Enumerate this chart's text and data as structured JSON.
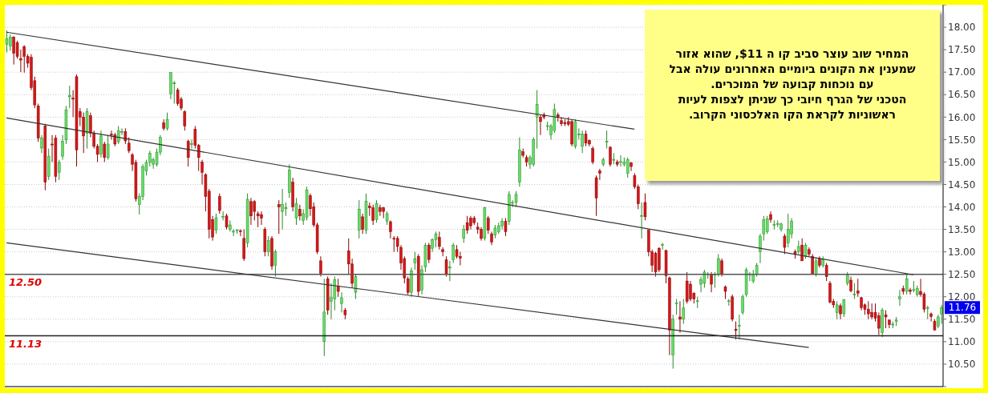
{
  "chart_data": {
    "type": "candlestick",
    "categories": [
      null,
      null,
      null,
      null,
      null,
      null,
      null,
      null,
      null,
      null,
      null,
      null,
      null,
      null,
      null,
      null,
      null,
      null,
      null,
      null,
      null,
      null,
      null,
      null,
      null,
      null,
      null,
      null,
      null,
      null,
      null,
      null,
      null,
      null,
      null,
      null,
      null,
      null,
      null,
      null,
      null,
      null,
      null,
      null,
      null,
      null,
      null,
      null,
      null,
      null,
      null,
      null,
      null,
      null,
      null,
      null,
      null,
      null,
      null,
      null,
      null,
      null,
      null,
      null,
      null,
      null,
      null,
      null,
      null,
      null,
      null,
      null,
      null,
      null,
      null,
      null,
      null,
      null,
      null,
      null,
      null,
      null,
      null,
      null,
      null,
      null,
      null,
      null,
      null,
      null,
      null,
      null,
      null,
      null,
      null,
      null,
      null,
      null,
      null,
      null,
      null,
      null,
      null,
      null,
      null,
      null,
      null,
      null,
      null,
      null,
      null,
      null,
      null,
      null,
      null,
      null,
      null,
      null,
      null,
      null,
      null,
      null,
      null,
      null,
      null,
      null,
      null,
      null,
      null,
      null,
      null,
      null,
      null,
      null,
      null,
      null,
      null,
      null,
      null,
      null,
      null,
      null,
      null,
      null,
      null,
      null,
      null,
      null,
      null,
      null,
      null,
      null,
      null,
      null,
      null,
      null,
      null,
      null,
      null,
      null,
      null,
      null,
      null,
      null,
      null,
      null,
      null,
      null,
      null,
      null,
      null,
      null,
      null,
      null,
      null,
      null,
      null,
      null,
      null,
      null,
      null,
      null,
      null,
      null,
      null,
      null,
      null,
      null,
      null,
      null,
      null,
      null,
      null,
      null,
      null,
      null,
      null,
      null,
      null,
      null,
      null,
      null,
      null,
      null,
      null,
      null,
      null,
      null,
      null,
      null,
      null,
      null,
      null,
      null,
      null,
      null,
      null,
      null,
      null,
      null,
      null,
      null,
      null,
      null,
      null,
      null,
      null,
      null,
      null,
      null,
      null,
      null,
      null,
      null,
      null,
      null,
      null,
      null,
      null,
      null,
      null,
      null,
      null,
      null,
      null,
      null,
      null,
      null,
      null,
      null,
      null,
      null,
      null,
      null,
      null,
      null,
      null,
      null,
      null,
      null,
      null,
      null,
      null,
      null,
      null,
      null,
      null,
      null,
      null
    ],
    "ohlc": [
      [
        17.62,
        17.93,
        17.44,
        17.75
      ],
      [
        17.58,
        17.84,
        17.48,
        17.78
      ],
      [
        17.78,
        17.8,
        17.17,
        17.42
      ],
      [
        17.66,
        17.7,
        17.3,
        17.35
      ],
      [
        17.3,
        17.5,
        17.0,
        17.27
      ],
      [
        17.57,
        17.6,
        16.99,
        17.35
      ],
      [
        17.35,
        17.4,
        17.1,
        17.2
      ],
      [
        17.33,
        17.4,
        16.6,
        16.66
      ],
      [
        16.81,
        16.9,
        16.2,
        16.27
      ],
      [
        16.25,
        16.3,
        15.45,
        15.53
      ],
      [
        15.31,
        15.6,
        15.2,
        15.53
      ],
      [
        15.8,
        15.85,
        14.37,
        14.55
      ],
      [
        14.68,
        15.3,
        14.6,
        15.13
      ],
      [
        15.4,
        15.6,
        15.0,
        15.38
      ],
      [
        15.53,
        15.6,
        14.55,
        14.68
      ],
      [
        14.77,
        15.05,
        14.6,
        14.99
      ],
      [
        15.13,
        15.6,
        15.05,
        15.46
      ],
      [
        15.49,
        16.25,
        15.4,
        16.16
      ],
      [
        16.45,
        16.7,
        16.2,
        16.48
      ],
      [
        16.42,
        16.6,
        16.0,
        16.4
      ],
      [
        16.9,
        16.95,
        14.9,
        15.27
      ],
      [
        16.12,
        16.2,
        15.8,
        16.0
      ],
      [
        16.0,
        16.1,
        15.2,
        15.58
      ],
      [
        15.64,
        16.2,
        15.3,
        16.12
      ],
      [
        16.03,
        16.1,
        15.55,
        15.64
      ],
      [
        15.64,
        15.7,
        15.3,
        15.35
      ],
      [
        15.35,
        15.4,
        15.0,
        15.17
      ],
      [
        15.18,
        15.7,
        15.1,
        15.58
      ],
      [
        15.4,
        15.45,
        15.0,
        15.1
      ],
      [
        15.1,
        15.6,
        15.05,
        15.4
      ],
      [
        15.62,
        15.7,
        15.5,
        15.6
      ],
      [
        15.6,
        15.65,
        15.35,
        15.4
      ],
      [
        15.45,
        15.8,
        15.4,
        15.7
      ],
      [
        15.66,
        15.75,
        15.6,
        15.68
      ],
      [
        15.68,
        15.75,
        15.4,
        15.47
      ],
      [
        15.42,
        15.55,
        15.2,
        15.25
      ],
      [
        15.16,
        15.2,
        14.8,
        14.95
      ],
      [
        14.99,
        15.05,
        14.12,
        14.18
      ],
      [
        14.05,
        14.3,
        13.83,
        14.23
      ],
      [
        14.23,
        14.95,
        14.15,
        14.9
      ],
      [
        14.8,
        15.05,
        14.7,
        14.99
      ],
      [
        14.99,
        15.25,
        14.9,
        15.2
      ],
      [
        14.95,
        15.1,
        14.85,
        15.05
      ],
      [
        14.95,
        15.3,
        14.9,
        15.22
      ],
      [
        15.22,
        15.6,
        15.15,
        15.55
      ],
      [
        15.87,
        15.95,
        15.7,
        15.75
      ],
      [
        15.75,
        16.1,
        15.7,
        15.95
      ],
      [
        16.52,
        17.0,
        16.4,
        16.99
      ],
      [
        16.74,
        16.8,
        16.3,
        16.76
      ],
      [
        16.6,
        16.65,
        16.25,
        16.3
      ],
      [
        16.4,
        16.45,
        16.15,
        16.2
      ],
      [
        16.12,
        16.15,
        15.7,
        15.8
      ],
      [
        15.46,
        15.5,
        14.9,
        15.1
      ],
      [
        15.39,
        15.5,
        15.3,
        15.41
      ],
      [
        15.73,
        15.8,
        15.3,
        15.37
      ],
      [
        15.37,
        15.4,
        14.8,
        15.1
      ],
      [
        15.0,
        15.05,
        14.5,
        14.77
      ],
      [
        14.72,
        14.75,
        13.9,
        14.23
      ],
      [
        14.35,
        14.4,
        13.3,
        13.5
      ],
      [
        13.72,
        13.8,
        13.25,
        13.33
      ],
      [
        13.48,
        13.85,
        13.4,
        13.76
      ],
      [
        14.23,
        14.3,
        13.85,
        13.92
      ],
      [
        13.77,
        13.9,
        13.7,
        13.79
      ],
      [
        13.8,
        13.85,
        13.5,
        13.55
      ],
      [
        13.5,
        13.7,
        13.45,
        13.6
      ],
      [
        13.44,
        13.5,
        13.35,
        13.46
      ],
      [
        13.48,
        13.5,
        13.4,
        13.49
      ],
      [
        13.47,
        13.5,
        13.35,
        13.46
      ],
      [
        13.3,
        13.5,
        12.8,
        12.85
      ],
      [
        13.2,
        14.3,
        13.1,
        14.17
      ],
      [
        14.12,
        14.2,
        13.6,
        13.8
      ],
      [
        14.12,
        14.15,
        13.7,
        13.9
      ],
      [
        13.85,
        13.9,
        13.55,
        13.8
      ],
      [
        13.83,
        13.9,
        13.6,
        13.75
      ],
      [
        13.5,
        13.55,
        12.9,
        13.0
      ],
      [
        13.0,
        13.35,
        12.9,
        13.25
      ],
      [
        13.3,
        13.35,
        12.6,
        12.68
      ],
      [
        12.7,
        13.05,
        12.45,
        13.0
      ],
      [
        14.05,
        14.15,
        13.4,
        14.0
      ],
      [
        13.9,
        14.4,
        13.5,
        14.05
      ],
      [
        13.96,
        14.1,
        13.8,
        13.98
      ],
      [
        14.32,
        14.95,
        14.2,
        14.82
      ],
      [
        14.55,
        14.65,
        13.9,
        14.0
      ],
      [
        13.75,
        14.2,
        13.6,
        14.07
      ],
      [
        13.95,
        14.05,
        13.7,
        13.8
      ],
      [
        13.7,
        13.95,
        13.6,
        13.85
      ],
      [
        13.77,
        14.45,
        13.7,
        14.38
      ],
      [
        14.25,
        14.3,
        13.8,
        13.96
      ],
      [
        14.0,
        14.1,
        13.55,
        13.6
      ],
      [
        13.6,
        13.65,
        12.95,
        13.0
      ],
      [
        12.8,
        12.9,
        12.45,
        12.52
      ],
      [
        11.0,
        12.4,
        10.68,
        11.66
      ],
      [
        12.4,
        12.45,
        11.6,
        11.7
      ],
      [
        11.9,
        12.3,
        11.5,
        11.98
      ],
      [
        11.95,
        12.45,
        11.7,
        12.38
      ],
      [
        12.24,
        12.4,
        12.0,
        12.12
      ],
      [
        11.85,
        12.1,
        11.65,
        11.98
      ],
      [
        11.7,
        11.75,
        11.5,
        11.6
      ],
      [
        13.02,
        13.3,
        12.5,
        12.73
      ],
      [
        12.73,
        12.85,
        12.2,
        12.3
      ],
      [
        12.1,
        12.5,
        11.95,
        12.45
      ],
      [
        13.48,
        14.15,
        13.3,
        13.95
      ],
      [
        13.78,
        13.85,
        13.4,
        13.5
      ],
      [
        13.48,
        14.3,
        13.4,
        14.13
      ],
      [
        14.02,
        14.1,
        13.8,
        13.98
      ],
      [
        13.98,
        14.05,
        13.6,
        13.7
      ],
      [
        13.72,
        14.15,
        13.65,
        14.08
      ],
      [
        13.98,
        14.05,
        13.8,
        13.9
      ],
      [
        13.98,
        14.0,
        13.75,
        13.9
      ],
      [
        13.68,
        13.9,
        13.6,
        13.85
      ],
      [
        13.67,
        13.7,
        13.3,
        13.45
      ],
      [
        13.3,
        13.35,
        13.0,
        13.29
      ],
      [
        13.3,
        13.35,
        13.0,
        13.12
      ],
      [
        13.1,
        13.15,
        12.6,
        12.75
      ],
      [
        12.85,
        12.9,
        12.3,
        12.42
      ],
      [
        12.4,
        12.45,
        12.05,
        12.1
      ],
      [
        12.1,
        12.65,
        12.0,
        12.58
      ],
      [
        12.75,
        13.0,
        12.6,
        12.85
      ],
      [
        12.9,
        12.95,
        12.0,
        12.12
      ],
      [
        12.15,
        12.7,
        12.05,
        12.6
      ],
      [
        12.66,
        13.2,
        12.55,
        13.15
      ],
      [
        13.15,
        13.2,
        12.75,
        12.83
      ],
      [
        13.08,
        13.3,
        13.0,
        13.27
      ],
      [
        13.27,
        13.45,
        13.1,
        13.4
      ],
      [
        13.32,
        13.45,
        13.05,
        13.12
      ],
      [
        13.05,
        13.1,
        12.9,
        13.0
      ],
      [
        12.82,
        12.9,
        12.45,
        12.5
      ],
      [
        12.64,
        12.8,
        12.35,
        12.66
      ],
      [
        12.82,
        13.2,
        12.75,
        13.15
      ],
      [
        13.05,
        13.15,
        12.85,
        12.9
      ],
      [
        12.9,
        13.0,
        12.7,
        12.86
      ],
      [
        13.3,
        13.6,
        13.2,
        13.5
      ],
      [
        13.65,
        13.8,
        13.4,
        13.48
      ],
      [
        13.75,
        13.8,
        13.5,
        13.58
      ],
      [
        13.75,
        13.8,
        13.6,
        13.65
      ],
      [
        13.55,
        13.65,
        13.4,
        13.5
      ],
      [
        13.5,
        13.55,
        13.25,
        13.3
      ],
      [
        13.3,
        14.0,
        13.25,
        13.98
      ],
      [
        13.75,
        13.8,
        13.4,
        13.48
      ],
      [
        13.4,
        13.45,
        13.15,
        13.22
      ],
      [
        13.38,
        13.6,
        13.3,
        13.53
      ],
      [
        13.45,
        13.65,
        13.4,
        13.58
      ],
      [
        13.58,
        13.75,
        13.5,
        13.68
      ],
      [
        13.68,
        13.75,
        13.35,
        13.45
      ],
      [
        13.68,
        14.35,
        13.6,
        14.28
      ],
      [
        14.1,
        14.15,
        14.0,
        14.1
      ],
      [
        14.1,
        14.35,
        14.0,
        14.28
      ],
      [
        14.55,
        15.55,
        14.45,
        15.27
      ],
      [
        15.23,
        15.3,
        15.1,
        15.15
      ],
      [
        15.1,
        15.15,
        14.9,
        15.0
      ],
      [
        14.95,
        15.15,
        14.85,
        15.1
      ],
      [
        14.95,
        15.55,
        14.9,
        15.5
      ],
      [
        16.0,
        16.6,
        15.3,
        16.28
      ],
      [
        16.0,
        16.05,
        15.6,
        15.9
      ],
      [
        16.05,
        16.1,
        15.95,
        16.0
      ],
      [
        15.8,
        15.9,
        15.7,
        15.81
      ],
      [
        15.6,
        15.85,
        15.5,
        15.8
      ],
      [
        15.7,
        16.3,
        15.65,
        16.17
      ],
      [
        16.05,
        16.1,
        15.9,
        16.0
      ],
      [
        15.92,
        16.0,
        15.8,
        15.85
      ],
      [
        15.88,
        15.95,
        15.8,
        15.85
      ],
      [
        15.9,
        16.0,
        15.8,
        15.84
      ],
      [
        15.9,
        15.95,
        15.35,
        15.4
      ],
      [
        15.35,
        15.95,
        15.3,
        15.9
      ],
      [
        15.61,
        15.75,
        15.5,
        15.62
      ],
      [
        15.35,
        15.7,
        15.2,
        15.62
      ],
      [
        15.62,
        15.7,
        15.35,
        15.42
      ],
      [
        15.48,
        15.5,
        15.35,
        15.4
      ],
      [
        15.3,
        15.35,
        14.95,
        15.0
      ],
      [
        14.65,
        14.7,
        13.8,
        14.2
      ],
      [
        14.8,
        14.85,
        14.6,
        14.75
      ],
      [
        14.95,
        15.1,
        14.9,
        15.05
      ],
      [
        15.44,
        15.7,
        15.3,
        15.46
      ],
      [
        15.33,
        15.35,
        14.9,
        14.95
      ],
      [
        15.04,
        15.2,
        14.95,
        15.06
      ],
      [
        15.0,
        15.05,
        14.9,
        14.95
      ],
      [
        15.0,
        15.15,
        14.9,
        15.01
      ],
      [
        14.95,
        15.1,
        14.9,
        15.0
      ],
      [
        14.75,
        15.1,
        14.65,
        15.05
      ],
      [
        14.98,
        15.0,
        14.8,
        14.9
      ],
      [
        14.7,
        14.75,
        14.4,
        14.45
      ],
      [
        14.45,
        14.5,
        13.95,
        14.07
      ],
      [
        13.8,
        14.1,
        13.3,
        13.81
      ],
      [
        14.1,
        14.3,
        13.7,
        13.78
      ],
      [
        13.48,
        13.5,
        12.9,
        13.0
      ],
      [
        13.0,
        13.05,
        12.55,
        12.7
      ],
      [
        12.97,
        13.0,
        12.45,
        12.55
      ],
      [
        13.08,
        13.1,
        12.55,
        12.6
      ],
      [
        13.15,
        13.2,
        13.05,
        13.16
      ],
      [
        13.03,
        13.05,
        12.3,
        12.47
      ],
      [
        12.42,
        12.45,
        10.7,
        11.26
      ],
      [
        10.7,
        11.6,
        10.4,
        11.5
      ],
      [
        11.85,
        11.95,
        11.6,
        11.86
      ],
      [
        11.55,
        11.9,
        11.2,
        11.5
      ],
      [
        11.5,
        11.95,
        11.4,
        11.75
      ],
      [
        12.35,
        12.55,
        11.85,
        11.9
      ],
      [
        12.28,
        12.35,
        11.9,
        11.95
      ],
      [
        12.08,
        12.1,
        11.85,
        11.95
      ],
      [
        11.9,
        12.0,
        11.75,
        11.91
      ],
      [
        12.28,
        12.45,
        12.1,
        12.38
      ],
      [
        12.3,
        12.6,
        12.2,
        12.55
      ],
      [
        12.5,
        12.55,
        12.4,
        12.51
      ],
      [
        12.5,
        12.55,
        12.1,
        12.28
      ],
      [
        12.48,
        12.55,
        12.2,
        12.5
      ],
      [
        12.5,
        12.95,
        12.45,
        12.85
      ],
      [
        12.8,
        12.85,
        12.45,
        12.5
      ],
      [
        12.22,
        12.25,
        11.95,
        12.12
      ],
      [
        11.9,
        11.95,
        11.8,
        11.91
      ],
      [
        12.0,
        12.05,
        11.45,
        11.5
      ],
      [
        11.28,
        11.45,
        11.05,
        11.25
      ],
      [
        11.35,
        11.6,
        11.05,
        11.36
      ],
      [
        11.65,
        12.05,
        11.6,
        12.0
      ],
      [
        12.05,
        12.65,
        12.0,
        12.6
      ],
      [
        12.5,
        12.55,
        12.35,
        12.51
      ],
      [
        12.35,
        12.6,
        12.3,
        12.5
      ],
      [
        12.5,
        12.75,
        12.45,
        12.7
      ],
      [
        13.0,
        13.4,
        12.75,
        13.35
      ],
      [
        13.4,
        13.8,
        13.25,
        13.72
      ],
      [
        13.45,
        13.8,
        13.4,
        13.73
      ],
      [
        13.83,
        13.9,
        13.65,
        13.72
      ],
      [
        13.6,
        13.7,
        13.5,
        13.61
      ],
      [
        13.62,
        13.7,
        13.55,
        13.63
      ],
      [
        13.5,
        13.65,
        13.45,
        13.62
      ],
      [
        13.35,
        13.4,
        12.95,
        13.1
      ],
      [
        13.2,
        13.85,
        13.1,
        13.5
      ],
      [
        13.4,
        13.75,
        13.3,
        13.68
      ],
      [
        13.0,
        13.05,
        12.85,
        12.95
      ],
      [
        13.0,
        13.25,
        12.95,
        13.12
      ],
      [
        13.15,
        13.3,
        12.8,
        12.8
      ],
      [
        12.9,
        13.2,
        12.85,
        13.15
      ],
      [
        13.05,
        13.1,
        12.9,
        12.95
      ],
      [
        12.9,
        12.95,
        12.5,
        12.5
      ],
      [
        12.5,
        12.85,
        12.45,
        12.8
      ],
      [
        12.85,
        12.9,
        12.65,
        12.7
      ],
      [
        12.7,
        12.9,
        12.65,
        12.83
      ],
      [
        12.7,
        12.75,
        12.35,
        12.45
      ],
      [
        12.3,
        12.35,
        11.85,
        11.88
      ],
      [
        11.9,
        11.95,
        11.75,
        11.82
      ],
      [
        11.65,
        11.9,
        11.5,
        11.82
      ],
      [
        11.8,
        11.85,
        11.5,
        11.62
      ],
      [
        11.62,
        11.95,
        11.55,
        11.93
      ],
      [
        12.3,
        12.55,
        12.25,
        12.48
      ],
      [
        12.37,
        12.45,
        12.1,
        12.13
      ],
      [
        12.05,
        12.3,
        11.95,
        12.06
      ],
      [
        12.13,
        12.4,
        12.0,
        12.08
      ],
      [
        11.98,
        12.0,
        11.7,
        11.76
      ],
      [
        11.82,
        11.85,
        11.6,
        11.72
      ],
      [
        11.72,
        11.9,
        11.5,
        11.62
      ],
      [
        11.65,
        11.85,
        11.5,
        11.55
      ],
      [
        11.65,
        11.85,
        11.45,
        11.52
      ],
      [
        11.58,
        11.65,
        11.15,
        11.3
      ],
      [
        11.2,
        11.75,
        11.1,
        11.7
      ],
      [
        11.6,
        11.7,
        11.3,
        11.55
      ],
      [
        11.48,
        11.5,
        11.3,
        11.38
      ],
      [
        11.38,
        11.45,
        11.3,
        11.39
      ],
      [
        11.45,
        11.55,
        11.35,
        11.48
      ],
      [
        11.95,
        12.15,
        11.8,
        12.0
      ],
      [
        12.18,
        12.25,
        12.05,
        12.12
      ],
      [
        12.12,
        12.5,
        12.05,
        12.4
      ],
      [
        12.15,
        12.2,
        12.05,
        12.12
      ],
      [
        12.15,
        12.35,
        12.1,
        12.16
      ],
      [
        12.05,
        12.25,
        12.0,
        12.18
      ],
      [
        12.12,
        12.4,
        12.0,
        12.05
      ],
      [
        12.06,
        12.1,
        11.65,
        11.72
      ],
      [
        11.75,
        11.8,
        11.5,
        11.76
      ],
      [
        11.62,
        11.65,
        11.45,
        11.56
      ],
      [
        11.45,
        11.5,
        11.25,
        11.26
      ],
      [
        11.35,
        11.6,
        11.3,
        11.55
      ],
      [
        11.62,
        11.82,
        11.4,
        11.76
      ]
    ],
    "series": [
      {
        "type": "line",
        "color": "#333333",
        "values": [
          17.89,
          null,
          null,
          null,
          null,
          null,
          null,
          null,
          null,
          null,
          null,
          null,
          null,
          null,
          null,
          null,
          null,
          null,
          null,
          null,
          null,
          null,
          null,
          null,
          null,
          null,
          null,
          null,
          null,
          null,
          null,
          null,
          null,
          null,
          null,
          null,
          null,
          null,
          null,
          null,
          null,
          null,
          null,
          null,
          null,
          null,
          null,
          null,
          null,
          null,
          null,
          null,
          null,
          null,
          null,
          null,
          null,
          null,
          null,
          null,
          null,
          null,
          null,
          null,
          null,
          null,
          null,
          null,
          null,
          null,
          null,
          null,
          null,
          null,
          null,
          null,
          null,
          null,
          null,
          null,
          null,
          null,
          null,
          null,
          null,
          null,
          null,
          null,
          null,
          null,
          null,
          null,
          null,
          null,
          null,
          null,
          null,
          null,
          null,
          null,
          null,
          null,
          null,
          null,
          null,
          null,
          null,
          null,
          null,
          null,
          null,
          null,
          null,
          null,
          null,
          null,
          null,
          null,
          null,
          null,
          null,
          null,
          null,
          null,
          null,
          null,
          null,
          null,
          null,
          null,
          null,
          null,
          null,
          null,
          null,
          null,
          null,
          null,
          null,
          null,
          null,
          null,
          null,
          null,
          null,
          null,
          null,
          null,
          null,
          null,
          null,
          null,
          null,
          null,
          null,
          null,
          null,
          null,
          null,
          null,
          null,
          null,
          null,
          null,
          null,
          null,
          null,
          null,
          null,
          null,
          null,
          null,
          null,
          null,
          null,
          null,
          null,
          null,
          null,
          null,
          15.73,
          null,
          null,
          null,
          null,
          null,
          null,
          null,
          null,
          null,
          null,
          null,
          null,
          null,
          null,
          null,
          null,
          null,
          null,
          null,
          null,
          null,
          null,
          null,
          null,
          null,
          null,
          null,
          null,
          null,
          null,
          null,
          null,
          null,
          null,
          null,
          null,
          null,
          null,
          null,
          null,
          null,
          null,
          null,
          null,
          null,
          null,
          null,
          null,
          null,
          null,
          null,
          null,
          null,
          null,
          null,
          null,
          null,
          null,
          null,
          null,
          null,
          null,
          null,
          null,
          null,
          null,
          null,
          null,
          null,
          null,
          null,
          null,
          null,
          null,
          null,
          null,
          null,
          null,
          null,
          null,
          null,
          null,
          null,
          null,
          null,
          null,
          null,
          null
        ]
      },
      {
        "type": "line",
        "color": "#333333",
        "values": [
          15.98,
          null,
          null,
          null,
          null,
          null,
          null,
          null,
          null,
          null,
          null,
          null,
          null,
          null,
          null,
          null,
          null,
          null,
          null,
          null,
          null,
          null,
          null,
          null,
          null,
          null,
          null,
          null,
          null,
          null,
          null,
          null,
          null,
          null,
          null,
          null,
          null,
          null,
          null,
          null,
          null,
          null,
          null,
          null,
          null,
          null,
          null,
          null,
          null,
          null,
          null,
          null,
          null,
          null,
          null,
          null,
          null,
          null,
          null,
          null,
          null,
          null,
          null,
          null,
          null,
          null,
          null,
          null,
          null,
          null,
          null,
          null,
          null,
          null,
          null,
          null,
          null,
          null,
          null,
          null,
          null,
          null,
          null,
          null,
          null,
          null,
          null,
          null,
          null,
          null,
          null,
          null,
          null,
          null,
          null,
          null,
          null,
          null,
          null,
          null,
          null,
          null,
          null,
          null,
          null,
          null,
          null,
          null,
          null,
          null,
          null,
          null,
          null,
          null,
          null,
          null,
          null,
          null,
          null,
          null,
          null,
          null,
          null,
          null,
          null,
          null,
          null,
          null,
          null,
          null,
          null,
          null,
          null,
          null,
          null,
          null,
          null,
          null,
          null,
          null,
          null,
          null,
          null,
          null,
          null,
          null,
          null,
          null,
          null,
          null,
          null,
          null,
          null,
          null,
          null,
          null,
          null,
          null,
          null,
          null,
          null,
          null,
          null,
          null,
          null,
          null,
          null,
          null,
          null,
          null,
          null,
          null,
          null,
          null,
          null,
          null,
          null,
          null,
          null,
          null,
          null,
          null,
          null,
          null,
          null,
          null,
          null,
          null,
          null,
          null,
          null,
          null,
          null,
          null,
          null,
          null,
          null,
          null,
          null,
          null,
          null,
          null,
          null,
          null,
          null,
          null,
          null,
          null,
          null,
          null,
          null,
          null,
          null,
          null,
          null,
          null,
          null,
          null,
          null,
          null,
          null,
          null,
          null,
          null,
          null,
          null,
          null,
          null,
          null,
          null,
          null,
          null,
          null,
          null,
          null,
          null,
          null,
          null,
          null,
          null,
          null,
          null,
          null,
          null,
          null,
          null,
          null,
          null,
          null,
          null,
          null,
          null,
          null,
          null,
          null,
          null,
          null,
          null,
          null,
          null,
          12.49,
          null,
          null,
          null,
          null,
          null,
          null,
          null,
          null
        ]
      },
      {
        "type": "line",
        "color": "#333333",
        "values": [
          13.2,
          null,
          null,
          null,
          null,
          null,
          null,
          null,
          null,
          null,
          null,
          null,
          null,
          null,
          null,
          null,
          null,
          null,
          null,
          null,
          null,
          null,
          null,
          null,
          null,
          null,
          null,
          null,
          null,
          null,
          null,
          null,
          null,
          null,
          null,
          null,
          null,
          null,
          null,
          null,
          null,
          null,
          null,
          null,
          null,
          null,
          null,
          null,
          null,
          null,
          null,
          null,
          null,
          null,
          null,
          null,
          null,
          null,
          null,
          null,
          null,
          null,
          null,
          null,
          null,
          null,
          null,
          null,
          null,
          null,
          null,
          null,
          null,
          null,
          null,
          null,
          null,
          null,
          null,
          null,
          null,
          null,
          null,
          null,
          null,
          null,
          null,
          null,
          null,
          null,
          null,
          null,
          null,
          null,
          null,
          null,
          null,
          null,
          null,
          null,
          null,
          null,
          null,
          null,
          null,
          null,
          null,
          null,
          null,
          null,
          null,
          null,
          null,
          null,
          null,
          null,
          null,
          null,
          null,
          null,
          null,
          null,
          null,
          null,
          null,
          null,
          null,
          null,
          null,
          null,
          null,
          null,
          null,
          null,
          null,
          null,
          null,
          null,
          null,
          null,
          null,
          null,
          null,
          null,
          null,
          null,
          null,
          null,
          null,
          null,
          null,
          null,
          null,
          null,
          null,
          null,
          null,
          null,
          null,
          null,
          null,
          null,
          null,
          null,
          null,
          null,
          null,
          null,
          null,
          null,
          null,
          null,
          null,
          null,
          null,
          null,
          null,
          null,
          null,
          null,
          null,
          null,
          null,
          null,
          null,
          null,
          null,
          null,
          null,
          null,
          null,
          null,
          null,
          null,
          null,
          null,
          null,
          null,
          null,
          null,
          null,
          null,
          null,
          null,
          null,
          null,
          null,
          null,
          null,
          null,
          null,
          null,
          null,
          null,
          null,
          null,
          null,
          null,
          null,
          null,
          null,
          null,
          null,
          null,
          null,
          null,
          null,
          null,
          null,
          null,
          10.87,
          null,
          null,
          null,
          null,
          null,
          null,
          null,
          null,
          null,
          null,
          null,
          null,
          null,
          null,
          null,
          null,
          null,
          null,
          null,
          null,
          null,
          null,
          null,
          null,
          null,
          null,
          null,
          null,
          null,
          null,
          null,
          null,
          null,
          null,
          null,
          null,
          null,
          null
        ]
      }
    ],
    "ylim": [
      10,
      18.5
    ],
    "yticks": [
      {
        "value": 10,
        "label": null
      },
      {
        "value": 10.5,
        "label": "10.50"
      },
      {
        "value": 11,
        "label": "11.00"
      },
      {
        "value": 11.5,
        "label": "11.50"
      },
      {
        "value": 12,
        "label": "12.00"
      },
      {
        "value": 12.5,
        "label": "12.50"
      },
      {
        "value": 13,
        "label": "13.00"
      },
      {
        "value": 13.5,
        "label": "13.50"
      },
      {
        "value": 14,
        "label": "14.00"
      },
      {
        "value": 14.5,
        "label": "14.50"
      },
      {
        "value": 15,
        "label": "15.00"
      },
      {
        "value": 15.5,
        "label": "15.50"
      },
      {
        "value": 16,
        "label": "16.00"
      },
      {
        "value": 16.5,
        "label": "16.50"
      },
      {
        "value": 17,
        "label": "17.00"
      },
      {
        "value": 17.5,
        "label": "17.50"
      },
      {
        "value": 18,
        "label": "18.00"
      },
      {
        "value": 18.5,
        "label": null
      }
    ],
    "ref_lines": [
      {
        "axis": "y",
        "value": 12.5,
        "label": "12.50",
        "color": "#555555"
      },
      {
        "axis": "y",
        "value": 11.13,
        "label": "11.13",
        "color": "#222222"
      }
    ],
    "annotations": [
      "המחיר שוב עוצר סביב קו ה $11, שהוא אזור\nשמענין את הקונים ביומיים האחרונים עולה אבל\nעם נוכחות קבועה של המוכרים.\nהטכני של הגרף חיובי כך שניתן לצפות לעיות\nראשוניות לקראת הקו האלכסוני הקרוב.",
      {
        "text": "11.76",
        "y": 11.76
      }
    ],
    "grid": "y",
    "tick_labels": "y"
  }
}
